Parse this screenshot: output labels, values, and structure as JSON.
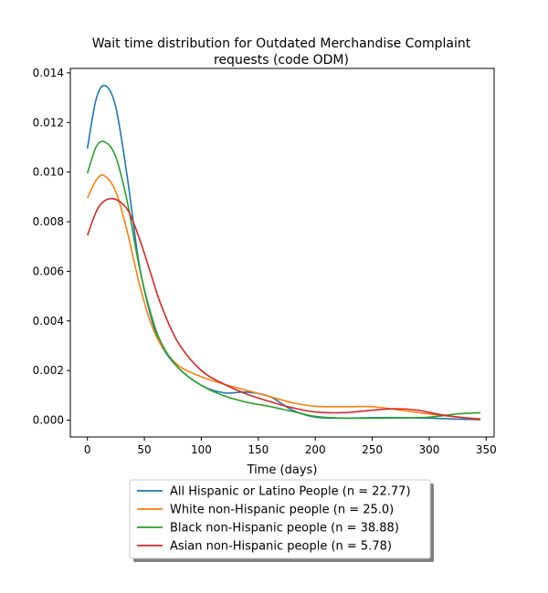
{
  "chart_data": {
    "type": "line",
    "title_line1": "Wait time distribution  for Outdated Merchandise Complaint",
    "title_line2": "requests (code ODM)",
    "xlabel": "Time (days)",
    "ylabel": "",
    "xlim": [
      -15,
      357
    ],
    "ylim": [
      -0.00068,
      0.01418
    ],
    "xticks": [
      0,
      50,
      100,
      150,
      200,
      250,
      300,
      350
    ],
    "xtick_labels": [
      "0",
      "50",
      "100",
      "150",
      "200",
      "250",
      "300",
      "350"
    ],
    "yticks": [
      0,
      0.002,
      0.004,
      0.006,
      0.008,
      0.01,
      0.012,
      0.014
    ],
    "ytick_labels": [
      "0.000",
      "0.002",
      "0.004",
      "0.006",
      "0.008",
      "0.010",
      "0.012",
      "0.014"
    ],
    "grid": false,
    "legend_placement": "below-plot",
    "series": [
      {
        "name": "All Hispanic or Latino People (n = 22.77)",
        "color": "#1f77b4",
        "points": [
          [
            0,
            0.01095
          ],
          [
            8,
            0.013
          ],
          [
            16,
            0.01348
          ],
          [
            25,
            0.0126
          ],
          [
            35,
            0.0098
          ],
          [
            45,
            0.0064
          ],
          [
            55,
            0.0043
          ],
          [
            65,
            0.003
          ],
          [
            80,
            0.0021
          ],
          [
            100,
            0.0014
          ],
          [
            120,
            0.0011
          ],
          [
            140,
            0.00113
          ],
          [
            160,
            0.00095
          ],
          [
            180,
            0.0004
          ],
          [
            200,
            0.00012
          ],
          [
            225,
            8e-05
          ],
          [
            250,
            0.0001
          ],
          [
            275,
            0.0001
          ],
          [
            300,
            8e-05
          ],
          [
            325,
            4e-05
          ],
          [
            345,
            2e-05
          ]
        ]
      },
      {
        "name": "White non-Hispanic people (n = 25.0)",
        "color": "#ff7f0e",
        "points": [
          [
            0,
            0.00895
          ],
          [
            8,
            0.0097
          ],
          [
            15,
            0.00985
          ],
          [
            25,
            0.0092
          ],
          [
            35,
            0.0076
          ],
          [
            45,
            0.0056
          ],
          [
            55,
            0.004
          ],
          [
            65,
            0.003
          ],
          [
            80,
            0.0022
          ],
          [
            100,
            0.00175
          ],
          [
            120,
            0.00145
          ],
          [
            140,
            0.0012
          ],
          [
            160,
            0.00095
          ],
          [
            180,
            0.0007
          ],
          [
            200,
            0.00056
          ],
          [
            225,
            0.00054
          ],
          [
            250,
            0.00054
          ],
          [
            275,
            0.0004
          ],
          [
            300,
            0.00025
          ],
          [
            325,
            0.00012
          ],
          [
            345,
            5e-05
          ]
        ]
      },
      {
        "name": "Black non-Hispanic people (n = 38.88)",
        "color": "#2ca02c",
        "points": [
          [
            0,
            0.00995
          ],
          [
            8,
            0.01105
          ],
          [
            16,
            0.0112
          ],
          [
            25,
            0.0106
          ],
          [
            35,
            0.0088
          ],
          [
            45,
            0.0063
          ],
          [
            55,
            0.0044
          ],
          [
            65,
            0.0031
          ],
          [
            80,
            0.0021
          ],
          [
            100,
            0.0014
          ],
          [
            120,
            0.00098
          ],
          [
            140,
            0.00072
          ],
          [
            160,
            0.00055
          ],
          [
            180,
            0.00035
          ],
          [
            200,
            0.00015
          ],
          [
            225,
            8e-05
          ],
          [
            250,
            8e-05
          ],
          [
            275,
            9e-05
          ],
          [
            300,
            0.00012
          ],
          [
            325,
            0.00025
          ],
          [
            345,
            0.0003
          ]
        ]
      },
      {
        "name": "Asian non-Hispanic people (n = 5.78)",
        "color": "#d62728",
        "points": [
          [
            0,
            0.00745
          ],
          [
            10,
            0.0086
          ],
          [
            22,
            0.00893
          ],
          [
            35,
            0.0085
          ],
          [
            45,
            0.0074
          ],
          [
            55,
            0.006
          ],
          [
            65,
            0.0046
          ],
          [
            80,
            0.0031
          ],
          [
            100,
            0.002
          ],
          [
            120,
            0.00145
          ],
          [
            140,
            0.00105
          ],
          [
            160,
            0.00075
          ],
          [
            180,
            0.0005
          ],
          [
            200,
            0.00033
          ],
          [
            225,
            0.0003
          ],
          [
            250,
            0.0004
          ],
          [
            270,
            0.00046
          ],
          [
            290,
            0.0004
          ],
          [
            310,
            0.00022
          ],
          [
            330,
            0.0001
          ],
          [
            345,
            3e-05
          ]
        ]
      }
    ]
  }
}
